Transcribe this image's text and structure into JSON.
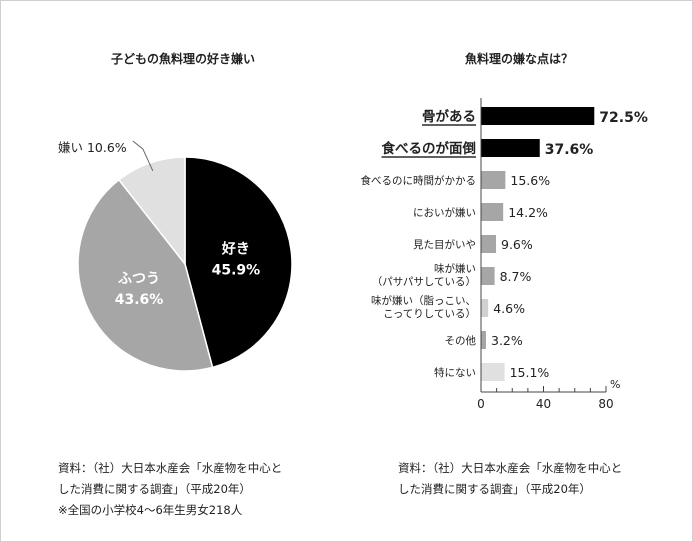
{
  "colors": {
    "black": "#000000",
    "gray": "#a6a6a6",
    "light": "#e0e0e0",
    "axis": "#444444"
  },
  "chart_data": [
    {
      "type": "pie",
      "title": "子どもの魚料理の好き嫌い",
      "slices": [
        {
          "label": "好き",
          "value": 45.9,
          "value_label": "45.9%",
          "color": "#000000"
        },
        {
          "label": "ふつう",
          "value": 43.6,
          "value_label": "43.6%",
          "color": "#a6a6a6"
        },
        {
          "label": "嫌い",
          "value": 10.6,
          "value_label": "10.6%",
          "color": "#e0e0e0"
        }
      ],
      "source_lines": [
        "資料：（社）大日本水産会「水産物を中心と",
        "した消費に関する調査」（平成20年）",
        "※全国の小学校4〜6年生男女218人"
      ]
    },
    {
      "type": "bar",
      "orientation": "horizontal",
      "title": "魚料理の嫌な点は？",
      "xlabel": "%",
      "xlim": [
        0,
        80
      ],
      "xticks": [
        0,
        40,
        80
      ],
      "categories": [
        [
          "骨がある"
        ],
        [
          "食べるのが面倒"
        ],
        [
          "食べるのに時間がかかる"
        ],
        [
          "においが嫌い"
        ],
        [
          "見た目がいや"
        ],
        [
          "味が嫌い",
          "（パサパサしている）"
        ],
        [
          "味が嫌い（脂っこい、",
          "こってりしている）"
        ],
        [
          "その他"
        ],
        [
          "特にない"
        ]
      ],
      "values": [
        72.5,
        37.6,
        15.6,
        14.2,
        9.6,
        8.7,
        4.6,
        3.2,
        15.1
      ],
      "value_labels": [
        "72.5%",
        "37.6%",
        "15.6%",
        "14.2%",
        "9.6%",
        "8.7%",
        "4.6%",
        "3.2%",
        "15.1%"
      ],
      "bar_colors": [
        "#000000",
        "#000000",
        "#a6a6a6",
        "#a6a6a6",
        "#a6a6a6",
        "#a6a6a6",
        "#d0d0d0",
        "#a6a6a6",
        "#e0e0e0"
      ],
      "highlight": [
        true,
        true,
        false,
        false,
        false,
        false,
        false,
        false,
        false
      ],
      "source_lines": [
        "資料：（社）大日本水産会「水産物を中心と",
        "した消費に関する調査」（平成20年）"
      ]
    }
  ]
}
